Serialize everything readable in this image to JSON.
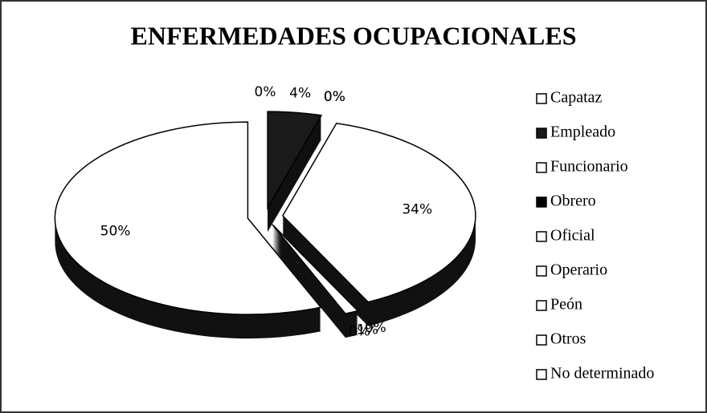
{
  "chart_data": {
    "type": "pie",
    "title": "ENFERMEDADES OCUPACIONALES",
    "categories": [
      "Capataz",
      "Empleado",
      "Funcionario",
      "Obrero",
      "Oficial",
      "Operario",
      "Peón",
      "Otros",
      "No determinado"
    ],
    "values": [
      0,
      4,
      0,
      0,
      34,
      0,
      1,
      0,
      50
    ],
    "value_labels": [
      "0%",
      "4%",
      "0%",
      "0%",
      "34%",
      "0%",
      "1%",
      "0%",
      "50%"
    ],
    "colors": [
      "#ffffff",
      "#1a1a1a",
      "#ffffff",
      "#000000",
      "#ffffff",
      "#ffffff",
      "#ffffff",
      "#ffffff",
      "#ffffff"
    ],
    "legend": "right"
  }
}
